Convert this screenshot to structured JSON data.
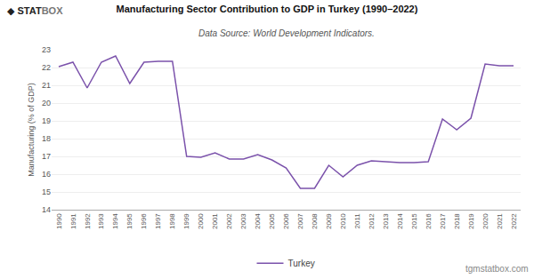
{
  "chart_data": {
    "type": "line",
    "title": "Manufacturing Sector Contribution to GDP in Turkey (1990–2022)",
    "subtitle": "Data Source: World Development Indicators.",
    "ylabel": "Manufacturing (% of GDP)",
    "annotations": [
      "tgmstatbox.com",
      "◆",
      "STAT",
      "BOX"
    ],
    "x": [
      1990,
      1991,
      1992,
      1993,
      1994,
      1995,
      1996,
      1997,
      1998,
      1999,
      2000,
      2001,
      2002,
      2003,
      2004,
      2005,
      2006,
      2007,
      2008,
      2009,
      2010,
      2011,
      2012,
      2013,
      2014,
      2015,
      2016,
      2017,
      2018,
      2019,
      2020,
      2021,
      2022
    ],
    "series": [
      {
        "name": "Turkey",
        "color": "#7B52AB",
        "values": [
          22.05,
          22.3,
          20.85,
          22.3,
          22.65,
          21.1,
          22.3,
          22.35,
          22.35,
          17.0,
          16.95,
          17.2,
          16.85,
          16.85,
          17.1,
          16.8,
          16.35,
          15.2,
          15.2,
          16.5,
          15.85,
          16.5,
          16.75,
          16.7,
          16.65,
          16.65,
          16.7,
          19.1,
          18.5,
          19.15,
          22.2,
          22.1,
          22.1
        ]
      }
    ],
    "xlim": [
      1989.5,
      2022.5
    ],
    "xticks": [
      1990,
      1991,
      1992,
      1993,
      1994,
      1995,
      1996,
      1997,
      1998,
      1999,
      2000,
      2001,
      2002,
      2003,
      2004,
      2005,
      2006,
      2007,
      2008,
      2009,
      2010,
      2011,
      2012,
      2013,
      2014,
      2015,
      2016,
      2017,
      2018,
      2019,
      2020,
      2021,
      2022
    ],
    "ylim": [
      14,
      23
    ],
    "yticks": [
      14,
      15,
      16,
      17,
      18,
      19,
      20,
      21,
      22,
      23
    ],
    "grid": "y",
    "legend": "bottom"
  }
}
